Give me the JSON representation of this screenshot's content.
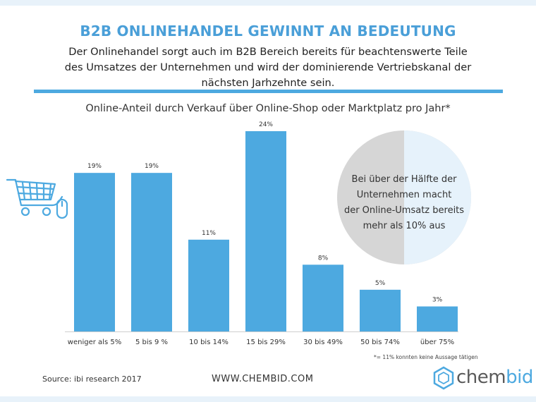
{
  "header": {
    "title": "B2B ONLINEHANDEL GEWINNT AN BEDEUTUNG",
    "subtitle_lines": [
      "Der Onlinehandel sorgt auch im B2B Bereich bereits für beachtenswerte Teile",
      "des Umsatzes der Unternehmen und wird der dominierende Vertriebskanal der",
      "nächsten Jarhzehnte sein."
    ]
  },
  "chart_data": {
    "type": "bar",
    "title": "Online-Anteil durch Verkauf über Online-Shop oder Marktplatz pro Jahr*",
    "xlabel": "",
    "ylabel": "",
    "categories": [
      "weniger als 5%",
      "5 bis 9 %",
      "10 bis 14%",
      "15 bis 29%",
      "30 bis 49%",
      "50 bis 74%",
      "über 75%"
    ],
    "values": [
      19,
      19,
      11,
      24,
      8,
      5,
      3
    ],
    "value_labels": [
      "19%",
      "19%",
      "11%",
      "24%",
      "8%",
      "5%",
      "3%"
    ],
    "ylim": [
      0,
      24
    ],
    "grid": false,
    "legend": "none",
    "bar_color": "#4da9e0",
    "footnote": "*= 11% konnten keine Aussage tätigen"
  },
  "callout": {
    "lines": [
      "Bei über der Hälfte der",
      "Unternehmen macht",
      "der Online-Umsatz bereits",
      "mehr als 10% aus"
    ],
    "share_over_10_percent": 0.5,
    "colors": {
      "left": "#d6d6d6",
      "right": "#e6f2fb"
    }
  },
  "footer": {
    "source": "Source: ibi research 2017",
    "website": "WWW.CHEMBID.COM",
    "logo_part1": "chem",
    "logo_part2": "bid"
  },
  "icons": {
    "cart": "shopping-cart-icon",
    "mouse": "mouse-icon",
    "logo": "hexagon-logo-icon"
  },
  "colors": {
    "accent": "#4da9e0",
    "headline": "#4a9fd8",
    "text": "#333333"
  }
}
